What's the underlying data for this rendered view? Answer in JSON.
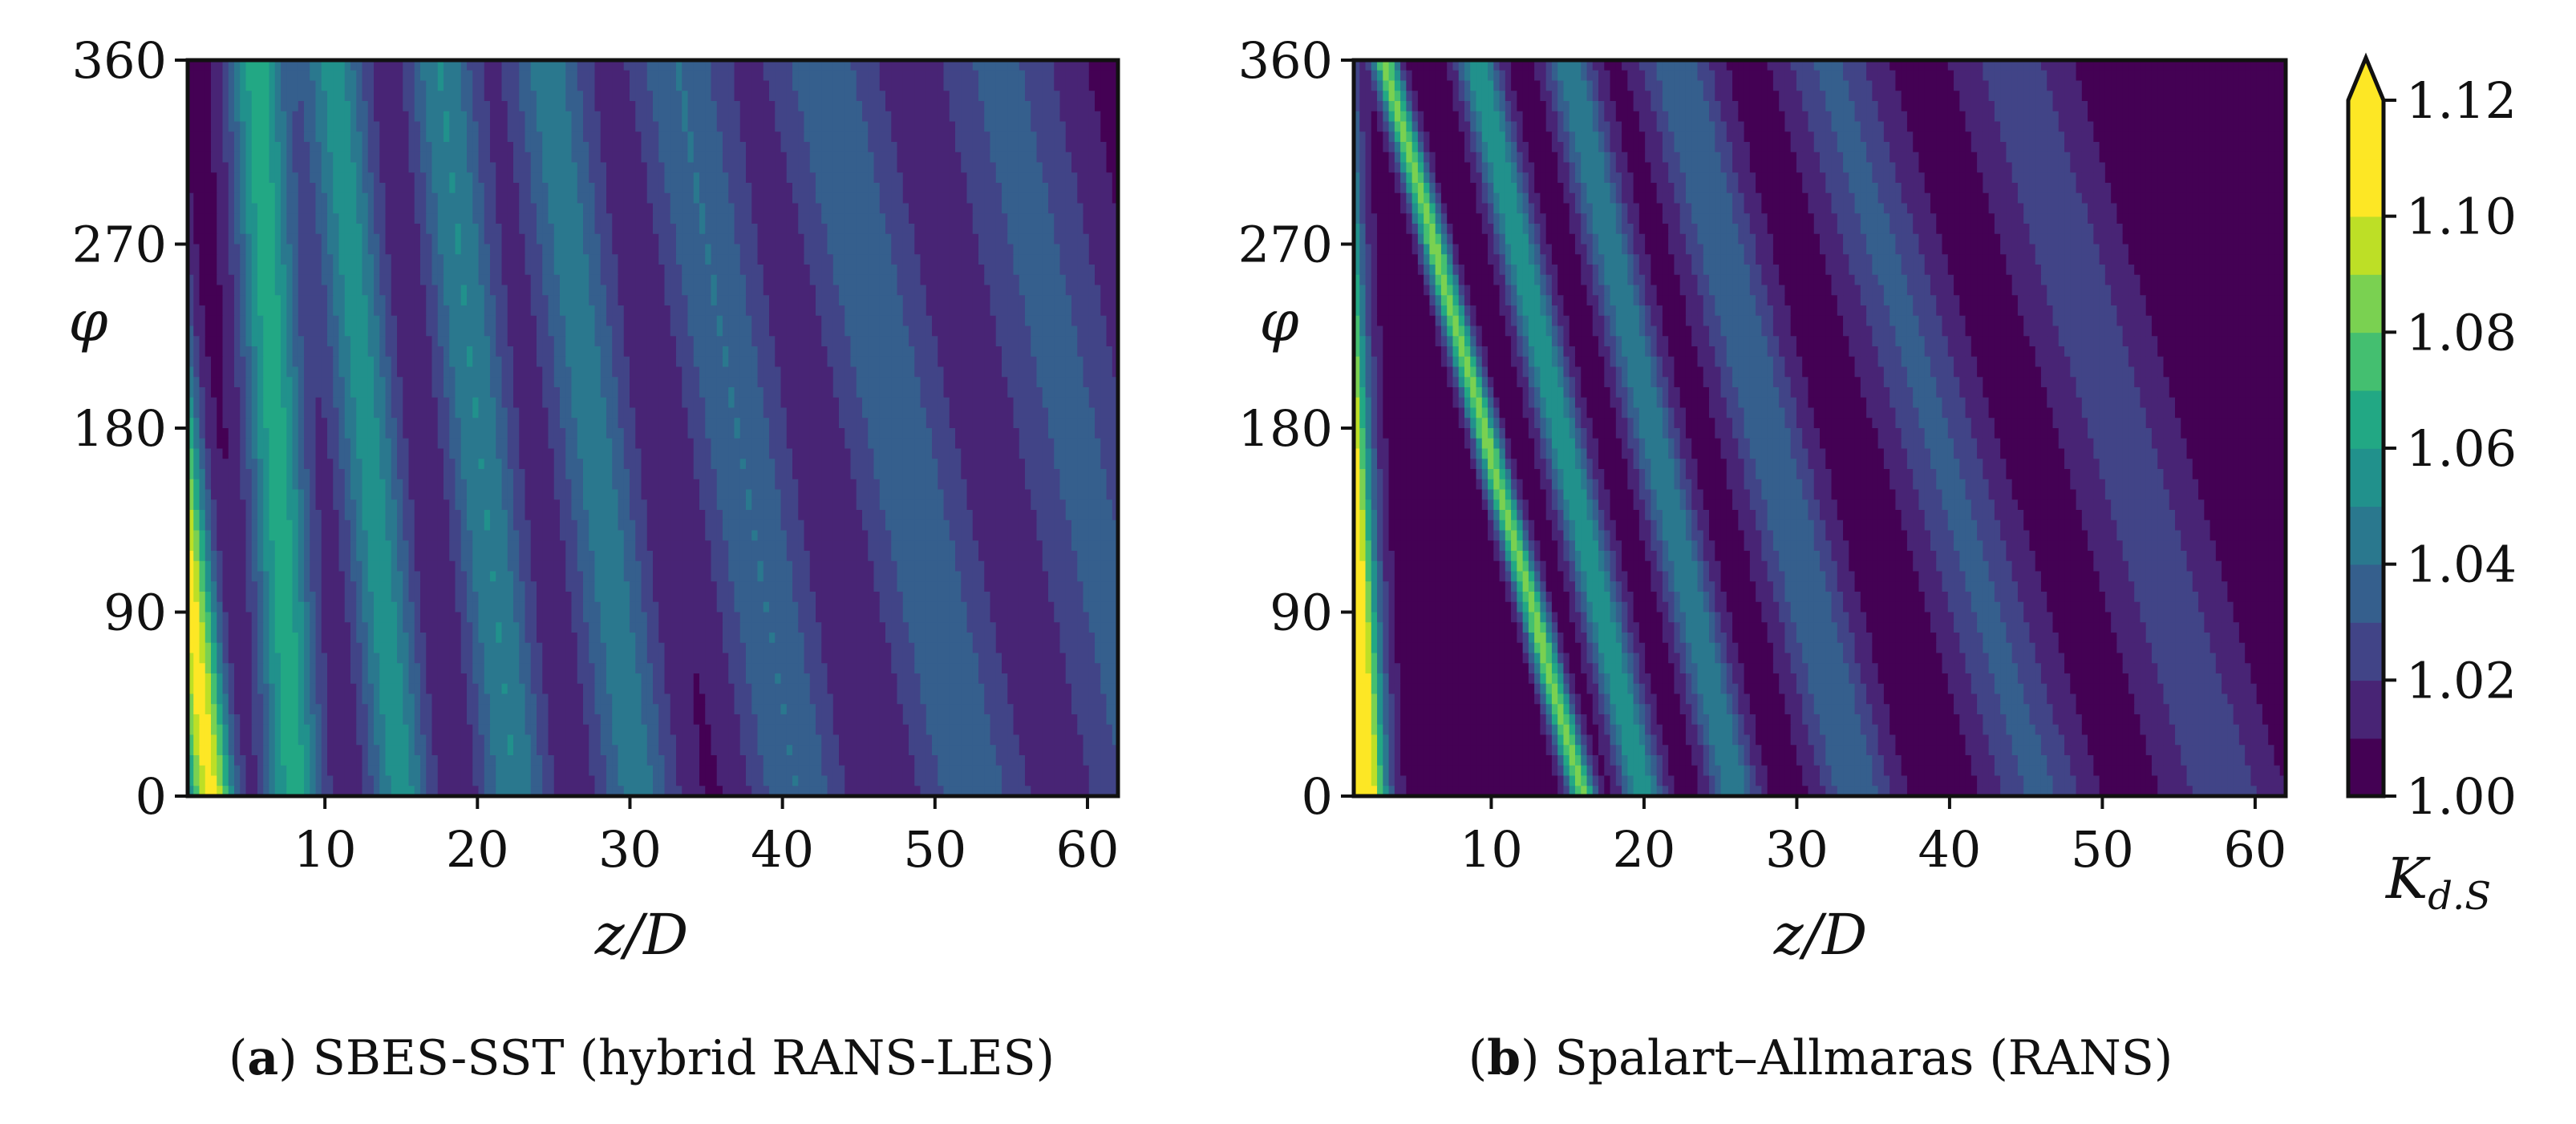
{
  "chart_data": [
    {
      "type": "heatmap",
      "panel": "a",
      "caption_letter": "a",
      "caption_text": "SBES-SST (hybrid RANS-LES)",
      "xlabel": "z/D",
      "ylabel": "φ",
      "xlim": [
        1,
        62
      ],
      "ylim": [
        0,
        360
      ],
      "xticks": [
        "10",
        "20",
        "30",
        "40",
        "50",
        "60"
      ],
      "yticks": [
        "0",
        "90",
        "180",
        "270",
        "360"
      ],
      "pattern": {
        "bands": [
          {
            "x_at_phi0": 2.5,
            "x_at_phi360": -2.5,
            "amp": 0.1,
            "width": 1.6
          },
          {
            "x_at_phi0": 8.0,
            "x_at_phi360": 5.5,
            "amp": 0.06,
            "width": 2.0
          },
          {
            "x_at_phi0": 15.0,
            "x_at_phi360": 10.5,
            "amp": 0.05,
            "width": 2.2
          },
          {
            "x_at_phi0": 22.5,
            "x_at_phi360": 17.5,
            "amp": 0.045,
            "width": 2.4
          },
          {
            "x_at_phi0": 30.5,
            "x_at_phi360": 24.5,
            "amp": 0.04,
            "width": 2.8
          },
          {
            "x_at_phi0": 41.0,
            "x_at_phi360": 33.0,
            "amp": 0.035,
            "width": 3.4
          },
          {
            "x_at_phi0": 52.5,
            "x_at_phi360": 42.5,
            "amp": 0.032,
            "width": 4.0
          },
          {
            "x_at_phi0": 64.0,
            "x_at_phi360": 54.0,
            "amp": 0.028,
            "width": 4.5
          }
        ],
        "baseline": 1.005,
        "decay": 0.0
      }
    },
    {
      "type": "heatmap",
      "panel": "b",
      "caption_letter": "b",
      "caption_text": "Spalart–Allmaras (RANS)",
      "xlabel": "z/D",
      "ylabel": "φ",
      "xlim": [
        1,
        62
      ],
      "ylim": [
        0,
        360
      ],
      "xticks": [
        "10",
        "20",
        "30",
        "40",
        "50",
        "60"
      ],
      "yticks": [
        "0",
        "90",
        "180",
        "270",
        "360"
      ],
      "pattern": {
        "bands": [
          {
            "x_at_phi0": 1.5,
            "x_at_phi360": -1.0,
            "amp": 0.13,
            "width": 1.6
          },
          {
            "x_at_phi0": 16.0,
            "x_at_phi360": 3.0,
            "amp": 0.08,
            "width": 0.9
          },
          {
            "x_at_phi0": 20.0,
            "x_at_phi360": 9.0,
            "amp": 0.055,
            "width": 1.4
          },
          {
            "x_at_phi0": 26.0,
            "x_at_phi360": 15.0,
            "amp": 0.045,
            "width": 1.6
          },
          {
            "x_at_phi0": 34.0,
            "x_at_phi360": 22.0,
            "amp": 0.035,
            "width": 2.5
          },
          {
            "x_at_phi0": 46.0,
            "x_at_phi360": 32.0,
            "amp": 0.028,
            "width": 3.2
          },
          {
            "x_at_phi0": 58.0,
            "x_at_phi360": 44.0,
            "amp": 0.022,
            "width": 3.6
          }
        ],
        "baseline": 1.004,
        "decay": 0.0
      }
    }
  ],
  "colorbar": {
    "label": "K_{d.S}",
    "label_main": "K",
    "label_sub": "d.S",
    "min": 1.0,
    "max": 1.12,
    "levels": 13,
    "extend": "max",
    "ticks": [
      "1.00",
      "1.02",
      "1.04",
      "1.06",
      "1.08",
      "1.10",
      "1.12"
    ],
    "colors": [
      "#440154",
      "#482475",
      "#414487",
      "#355f8d",
      "#2a788e",
      "#21918c",
      "#22a884",
      "#44bf70",
      "#7ad151",
      "#bddf26",
      "#fde725",
      "#fde725"
    ]
  }
}
